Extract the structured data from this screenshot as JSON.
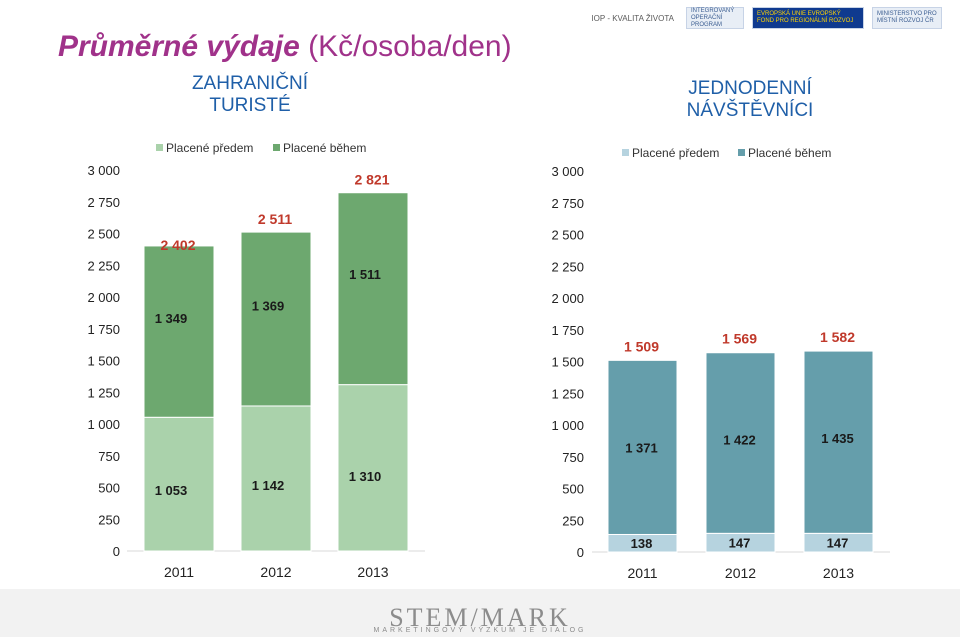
{
  "title_main": "Průměrné výdaje",
  "title_unit": "(Kč/osoba/den)",
  "logos": {
    "iop": "IOP - KVALITA ŽIVOTA",
    "integrated": "INTEGROVANÝ OPERAČNÍ PROGRAM",
    "eu": "EVROPSKÁ UNIE EVROPSKÝ FOND PRO REGIONÁLNÍ ROZVOJ",
    "ministry": "MINISTERSTVO PRO MÍSTNÍ ROZVOJ ČR"
  },
  "brand": "STEM/MARK",
  "tagline": "MARKETINGOVÝ VÝZKUM JE DIALOG",
  "chart_data": [
    {
      "type": "bar",
      "stacked": true,
      "title": "ZAHRANIČNÍ TURISTÉ",
      "categories": [
        "2011",
        "2012",
        "2013"
      ],
      "series": [
        {
          "name": "Placené předem",
          "values": [
            1053,
            1142,
            1310
          ],
          "labels": [
            "1 053",
            "1 142",
            "1 310"
          ],
          "color": "#aad2ab"
        },
        {
          "name": "Placené během",
          "values": [
            1349,
            1369,
            1511
          ],
          "labels": [
            "1 349",
            "1 369",
            "1 511"
          ],
          "color": "#6da86f"
        }
      ],
      "totals": [
        2402,
        2511,
        2821
      ],
      "total_labels": [
        "2 402",
        "2 511",
        "2 821"
      ],
      "ylim": [
        0,
        3000
      ],
      "yticks": [
        0,
        250,
        500,
        750,
        1000,
        1250,
        1500,
        1750,
        2000,
        2250,
        2500,
        2750,
        3000
      ],
      "ytick_labels": [
        "0",
        "250",
        "500",
        "750",
        "1 000",
        "1 250",
        "1 500",
        "1 750",
        "2 000",
        "2 250",
        "2 500",
        "2 750",
        "3 000"
      ],
      "legend": "top",
      "grid": false
    },
    {
      "type": "bar",
      "stacked": true,
      "title": "JEDNODENNÍ NÁVŠTĚVNÍCI",
      "categories": [
        "2011",
        "2012",
        "2013"
      ],
      "series": [
        {
          "name": "Placené předem",
          "values": [
            138,
            147,
            147
          ],
          "labels": [
            "138",
            "147",
            "147"
          ],
          "color": "#b6d3df"
        },
        {
          "name": "Placené během",
          "values": [
            1371,
            1422,
            1435
          ],
          "labels": [
            "1 371",
            "1 422",
            "1 435"
          ],
          "color": "#659eab"
        }
      ],
      "totals": [
        1509,
        1569,
        1582
      ],
      "total_labels": [
        "1 509",
        "1 569",
        "1 582"
      ],
      "ylim": [
        0,
        3000
      ],
      "yticks": [
        0,
        250,
        500,
        750,
        1000,
        1250,
        1500,
        1750,
        2000,
        2250,
        2500,
        2750,
        3000
      ],
      "ytick_labels": [
        "0",
        "250",
        "500",
        "750",
        "1 000",
        "1 250",
        "1 500",
        "1 750",
        "2 000",
        "2 250",
        "2 500",
        "2 750",
        "3 000"
      ],
      "legend": "top",
      "grid": false
    }
  ]
}
